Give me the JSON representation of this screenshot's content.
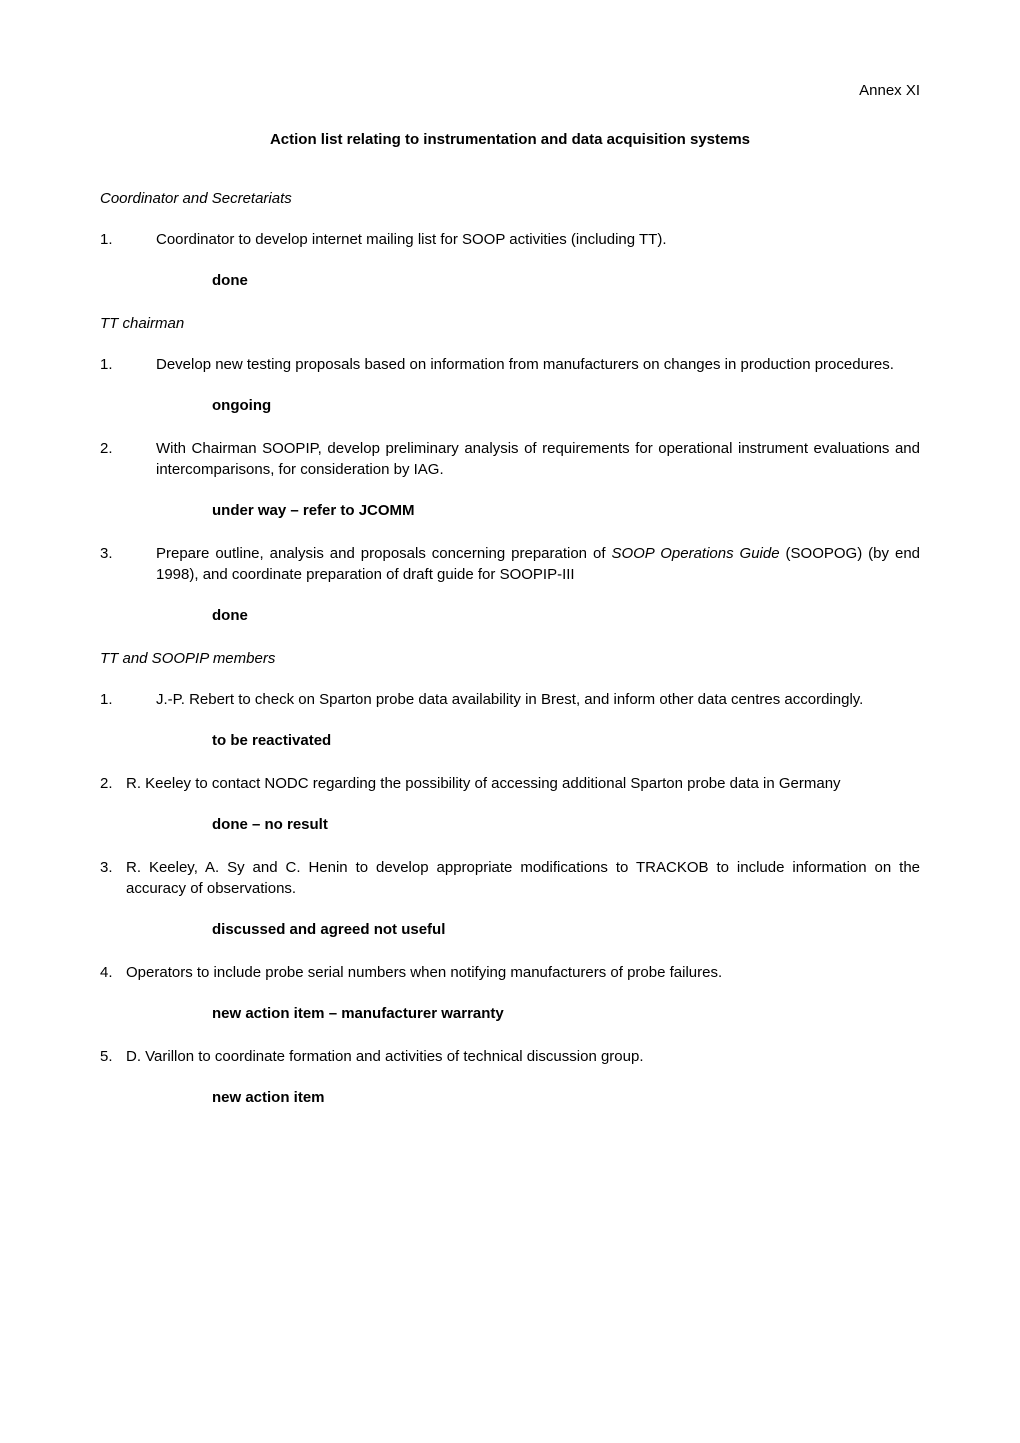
{
  "annex": "Annex XI",
  "title": "Action list relating to instrumentation and data acquisition systems",
  "sections": {
    "coordinator": {
      "heading": "Coordinator and Secretariats",
      "items": [
        {
          "num": "1.",
          "text": "Coordinator to develop internet mailing list for SOOP activities (including TT).",
          "status": "done"
        }
      ]
    },
    "tt_chairman": {
      "heading": "TT chairman",
      "items": [
        {
          "num": "1.",
          "text": "Develop new testing proposals based on information from manufacturers on changes in production procedures.",
          "status": "ongoing"
        },
        {
          "num": "2.",
          "text": "With Chairman SOOPIP, develop preliminary analysis of requirements for operational instrument evaluations and intercomparisons, for consideration by IAG.",
          "status": "under way – refer to JCOMM"
        },
        {
          "num": "3.",
          "text_pre": "Prepare outline, analysis and proposals concerning preparation of ",
          "text_italic": "SOOP Operations Guide",
          "text_post": " (SOOPOG) (by end 1998), and coordinate preparation of draft guide for SOOPIP-III",
          "status": "done"
        }
      ]
    },
    "tt_soopip": {
      "heading": "TT and SOOPIP members",
      "items": [
        {
          "num": "1.",
          "text": "J.-P. Rebert to check on Sparton probe data availability in Brest, and inform other data centres accordingly.",
          "status": "to be reactivated",
          "indented": true
        },
        {
          "num": "2.",
          "text": "R. Keeley to contact NODC regarding the possibility of accessing additional Sparton probe data in Germany",
          "status": "done – no result"
        },
        {
          "num": "3.",
          "text": "R. Keeley, A. Sy and C. Henin to develop appropriate modifications to TRACKOB to include information on the accuracy of observations.",
          "status": "discussed and agreed not useful"
        },
        {
          "num": "4.",
          "text": "Operators to include probe serial numbers when notifying manufacturers of probe failures.",
          "status": "new action item – manufacturer warranty"
        },
        {
          "num": "5.",
          "text": "D. Varillon to coordinate formation and activities of technical discussion group.",
          "status": "new action item"
        }
      ]
    }
  }
}
